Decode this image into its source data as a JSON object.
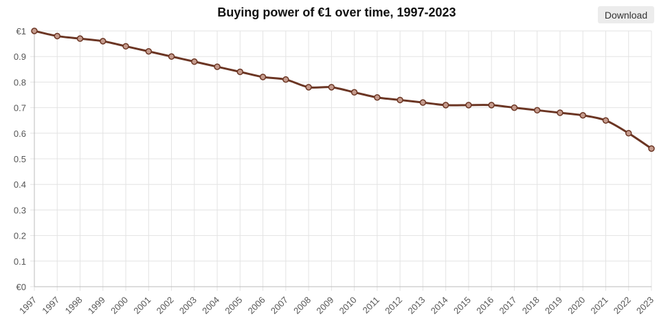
{
  "toolbar": {
    "download_label": "Download"
  },
  "colors": {
    "line": "#6b3523",
    "marker_fill": "#c49a8c",
    "grid": "#e3e3e3",
    "axis": "#bbbbbb"
  },
  "chart_data": {
    "type": "line",
    "title": "Buying power of €1 over time, 1997-2023",
    "xlabel": "",
    "ylabel": "",
    "ylim": [
      0,
      1
    ],
    "grid": true,
    "x_tick_labels": [
      "1997",
      "1997",
      "1998",
      "1999",
      "2000",
      "2001",
      "2002",
      "2003",
      "2004",
      "2005",
      "2006",
      "2007",
      "2008",
      "2009",
      "2010",
      "2011",
      "2012",
      "2013",
      "2014",
      "2015",
      "2016",
      "2017",
      "2018",
      "2019",
      "2020",
      "2021",
      "2022",
      "2023"
    ],
    "y_ticks": [
      0,
      0.1,
      0.2,
      0.3,
      0.4,
      0.5,
      0.6,
      0.7,
      0.8,
      0.9,
      1
    ],
    "y_tick_labels": [
      "€0",
      "0.1",
      "0.2",
      "0.3",
      "0.4",
      "0.5",
      "0.6",
      "0.7",
      "0.8",
      "0.9",
      "€1"
    ],
    "series": [
      {
        "name": "Buying power of €1",
        "values": [
          1.0,
          0.98,
          0.97,
          0.96,
          0.94,
          0.92,
          0.9,
          0.88,
          0.86,
          0.84,
          0.82,
          0.81,
          0.78,
          0.78,
          0.76,
          0.74,
          0.73,
          0.72,
          0.71,
          0.71,
          0.71,
          0.7,
          0.69,
          0.68,
          0.67,
          0.65,
          0.6,
          0.54
        ]
      }
    ]
  }
}
